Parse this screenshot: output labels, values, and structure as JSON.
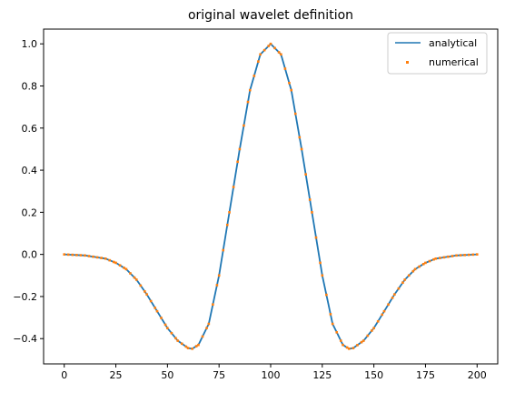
{
  "chart_data": {
    "type": "line",
    "title": "original wavelet definition",
    "xlabel": "",
    "ylabel": "",
    "xlim": [
      -10,
      210
    ],
    "ylim": [
      -0.52,
      1.07
    ],
    "xticks": [
      0,
      25,
      50,
      75,
      100,
      125,
      150,
      175,
      200
    ],
    "xtick_labels": [
      "0",
      "25",
      "50",
      "75",
      "100",
      "125",
      "150",
      "175",
      "200"
    ],
    "yticks": [
      -0.4,
      -0.2,
      0.0,
      0.2,
      0.4,
      0.6,
      0.8,
      1.0
    ],
    "ytick_labels": [
      "−0.4",
      "−0.2",
      "0.0",
      "0.2",
      "0.4",
      "0.6",
      "0.8",
      "1.0"
    ],
    "grid": false,
    "legend": "top-right",
    "series": [
      {
        "name": "analytical",
        "style": "line",
        "color": "#1f77b4",
        "x": [
          0,
          10,
          20,
          25,
          30,
          35,
          40,
          45,
          50,
          55,
          60,
          62,
          65,
          70,
          75,
          80,
          85,
          90,
          95,
          100,
          105,
          110,
          115,
          120,
          125,
          130,
          135,
          138,
          140,
          145,
          150,
          155,
          160,
          165,
          170,
          175,
          180,
          190,
          200
        ],
        "y": [
          0.0,
          -0.005,
          -0.02,
          -0.04,
          -0.07,
          -0.12,
          -0.19,
          -0.27,
          -0.35,
          -0.41,
          -0.445,
          -0.448,
          -0.43,
          -0.33,
          -0.1,
          0.2,
          0.5,
          0.78,
          0.95,
          1.0,
          0.95,
          0.78,
          0.5,
          0.2,
          -0.1,
          -0.33,
          -0.43,
          -0.448,
          -0.445,
          -0.41,
          -0.35,
          -0.27,
          -0.19,
          -0.12,
          -0.07,
          -0.04,
          -0.02,
          -0.005,
          0.0
        ]
      },
      {
        "name": "numerical",
        "style": "markers",
        "color": "#ff7f0e",
        "x": [
          0,
          10,
          20,
          25,
          30,
          35,
          40,
          45,
          50,
          55,
          60,
          62,
          65,
          70,
          75,
          80,
          85,
          90,
          95,
          100,
          105,
          110,
          115,
          120,
          125,
          130,
          135,
          138,
          140,
          145,
          150,
          155,
          160,
          165,
          170,
          175,
          180,
          190,
          200
        ],
        "y": [
          0.0,
          -0.005,
          -0.02,
          -0.04,
          -0.07,
          -0.12,
          -0.19,
          -0.27,
          -0.35,
          -0.41,
          -0.445,
          -0.448,
          -0.43,
          -0.33,
          -0.1,
          0.2,
          0.5,
          0.78,
          0.95,
          1.0,
          0.95,
          0.78,
          0.5,
          0.2,
          -0.1,
          -0.33,
          -0.43,
          -0.448,
          -0.445,
          -0.41,
          -0.35,
          -0.27,
          -0.19,
          -0.12,
          -0.07,
          -0.04,
          -0.02,
          -0.005,
          0.0
        ]
      }
    ]
  }
}
